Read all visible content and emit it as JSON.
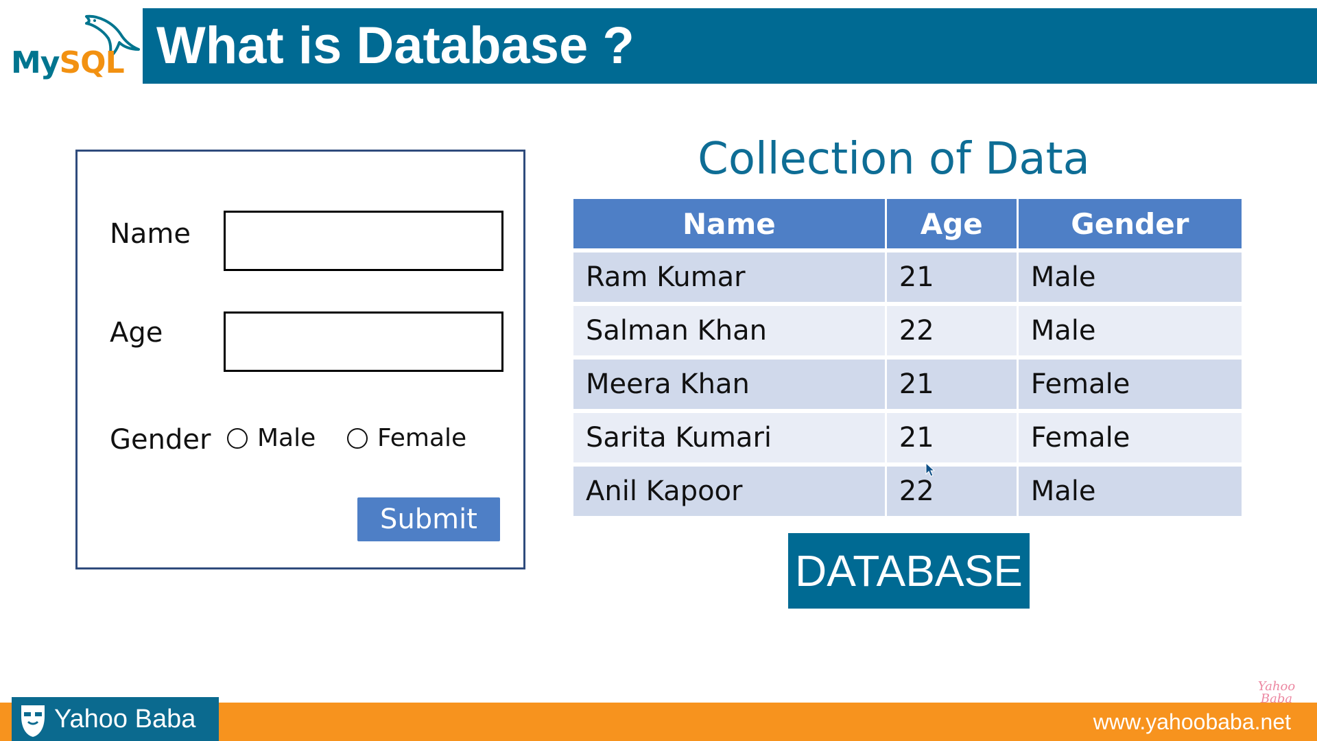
{
  "header": {
    "logo": {
      "my": "My",
      "sql": "SQL",
      "icon": "dolphin-icon"
    },
    "title": "What is Database ?"
  },
  "form": {
    "name_label": "Name",
    "name_value": "",
    "age_label": "Age",
    "age_value": "",
    "gender_label": "Gender",
    "gender_options": [
      "Male",
      "Female"
    ],
    "submit_label": "Submit"
  },
  "table_section": {
    "title": "Collection of Data",
    "headers": [
      "Name",
      "Age",
      "Gender"
    ],
    "rows": [
      [
        "Ram Kumar",
        "21",
        "Male"
      ],
      [
        "Salman Khan",
        "22",
        "Male"
      ],
      [
        "Meera Khan",
        "21",
        "Female"
      ],
      [
        "Sarita Kumari",
        "21",
        "Female"
      ],
      [
        "Anil Kapoor",
        "22",
        "Male"
      ]
    ],
    "database_label": "DATABASE"
  },
  "footer": {
    "brand": "Yahoo Baba",
    "url": "www.yahoobaba.net",
    "watermark": "Yahoo Baba"
  },
  "colors": {
    "title_bar": "#006a93",
    "table_header": "#4e7fc6",
    "row_odd": "#d0d9eb",
    "row_even": "#e9edf6",
    "footer": "#f7931e"
  }
}
